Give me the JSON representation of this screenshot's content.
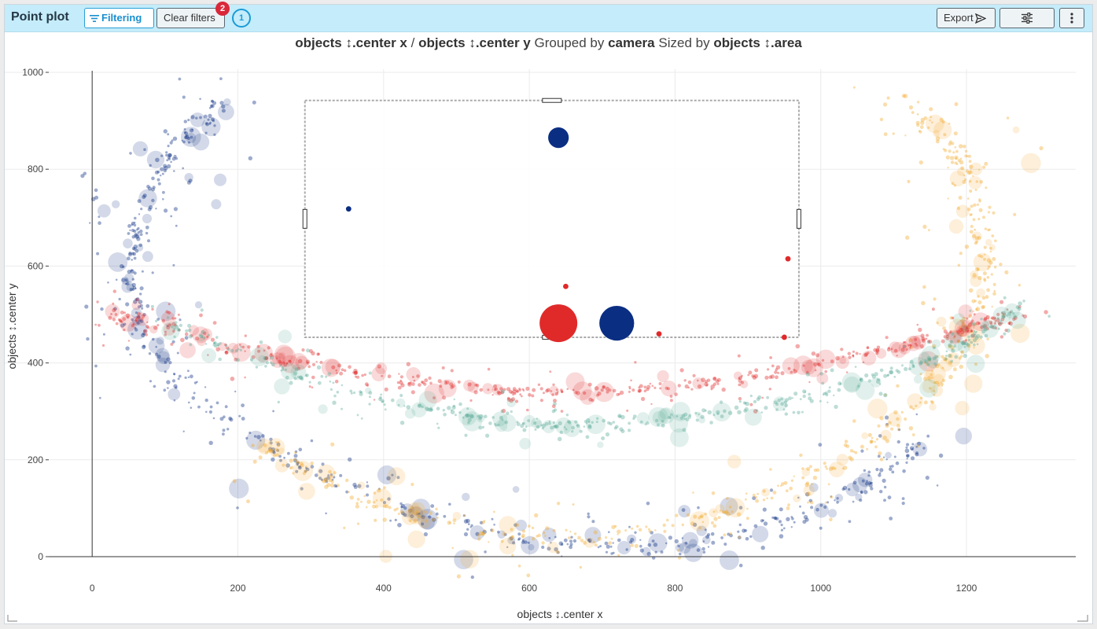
{
  "toolbar": {
    "title": "Point plot",
    "filtering_label": "Filtering",
    "clear_filters_label": "Clear filters",
    "clear_filters_badge": "2",
    "active_count": "1",
    "export_label": "Export"
  },
  "icons": {
    "filter": "filter-icon",
    "export": "send-icon",
    "settings": "sliders-icon",
    "more": "vertical-dots-icon"
  },
  "colors": {
    "toolbar_bg": "#c4ecfa",
    "accent": "#1a9bd7",
    "badge": "#d9283a"
  },
  "chart_title": {
    "x_field": "objects ↕.center x",
    "separator": "/",
    "y_field": "objects ↕.center y",
    "grouped_by_text": "Grouped by",
    "group_field": "camera",
    "sized_by_text": "Sized by",
    "size_field": "objects ↕.area"
  },
  "chart_data": {
    "type": "scatter",
    "xlabel": "objects ↕.center x",
    "ylabel": "objects ↕.center y",
    "xlim": [
      -120,
      1350
    ],
    "ylim": [
      0,
      1000
    ],
    "x_ticks": [
      0,
      200,
      400,
      600,
      800,
      1000,
      1200
    ],
    "y_ticks": [
      0,
      200,
      400,
      600,
      800,
      1000
    ],
    "grid": true,
    "series": [
      {
        "color": "#0a2e82",
        "band_points": [
          [
            180,
            940
          ],
          [
            120,
            850
          ],
          [
            75,
            730
          ],
          [
            50,
            600
          ],
          [
            65,
            470
          ],
          [
            140,
            330
          ],
          [
            280,
            190
          ],
          [
            450,
            90
          ],
          [
            620,
            25
          ],
          [
            800,
            25
          ],
          [
            950,
            70
          ],
          [
            1070,
            150
          ],
          [
            1145,
            250
          ]
        ]
      },
      {
        "color": "#f2a92e",
        "band_points": [
          [
            1120,
            940
          ],
          [
            1190,
            830
          ],
          [
            1220,
            700
          ],
          [
            1225,
            560
          ],
          [
            1190,
            430
          ],
          [
            1140,
            320
          ],
          [
            1020,
            190
          ],
          [
            880,
            95
          ],
          [
            700,
            35
          ],
          [
            520,
            60
          ],
          [
            360,
            120
          ],
          [
            230,
            240
          ]
        ]
      },
      {
        "color": "#e02a2a",
        "band_points": [
          [
            30,
            500
          ],
          [
            100,
            470
          ],
          [
            250,
            410
          ],
          [
            400,
            370
          ],
          [
            550,
            345
          ],
          [
            650,
            340
          ],
          [
            800,
            350
          ],
          [
            950,
            380
          ],
          [
            1100,
            430
          ],
          [
            1200,
            470
          ],
          [
            1280,
            500
          ]
        ]
      },
      {
        "color": "#5aaa98",
        "band_points": [
          [
            100,
            490
          ],
          [
            250,
            390
          ],
          [
            400,
            320
          ],
          [
            550,
            285
          ],
          [
            650,
            270
          ],
          [
            800,
            285
          ],
          [
            950,
            320
          ],
          [
            1100,
            380
          ],
          [
            1200,
            440
          ],
          [
            1280,
            520
          ]
        ]
      }
    ],
    "highlighted_points": [
      {
        "x": 640,
        "y": 865,
        "color": "#0a2e82",
        "area_rel": 0.3
      },
      {
        "x": 352,
        "y": 718,
        "color": "#0a2e82",
        "area_rel": 0.02
      },
      {
        "x": 955,
        "y": 615,
        "color": "#e02a2a",
        "area_rel": 0.02
      },
      {
        "x": 650,
        "y": 558,
        "color": "#e02a2a",
        "area_rel": 0.02
      },
      {
        "x": 640,
        "y": 482,
        "color": "#e02a2a",
        "area_rel": 1.0
      },
      {
        "x": 720,
        "y": 482,
        "color": "#0a2e82",
        "area_rel": 0.85
      },
      {
        "x": 778,
        "y": 460,
        "color": "#e02a2a",
        "area_rel": 0.02
      },
      {
        "x": 950,
        "y": 453,
        "color": "#e02a2a",
        "area_rel": 0.02
      }
    ],
    "selection": {
      "x_range": [
        292,
        970
      ],
      "y_range": [
        453,
        942
      ]
    }
  }
}
